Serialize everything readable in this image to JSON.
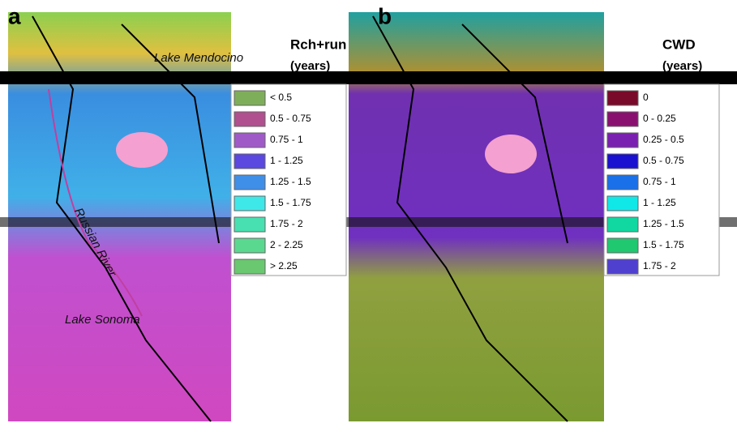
{
  "panels": [
    {
      "letter": "a",
      "legend_title": "Rch+run",
      "legend_unit": "(years)",
      "map_labels": [
        "Lake Mendocino",
        "Russian River",
        "Lake Sonoma"
      ],
      "legend": [
        {
          "label": "< 0.5",
          "color": "#7fae5a"
        },
        {
          "label": "0.5 - 0.75",
          "color": "#b0508f"
        },
        {
          "label": "0.75 - 1",
          "color": "#a05ac8"
        },
        {
          "label": "1 - 1.25",
          "color": "#5a48e0"
        },
        {
          "label": "1.25 - 1.5",
          "color": "#3f8fe8"
        },
        {
          "label": "1.5 - 1.75",
          "color": "#3fe8e8"
        },
        {
          "label": "1.75 - 2",
          "color": "#48e0b0"
        },
        {
          "label": "2 - 2.25",
          "color": "#5ad890"
        },
        {
          "label": "> 2.25",
          "color": "#6ac870"
        }
      ]
    },
    {
      "letter": "b",
      "legend_title": "CWD",
      "legend_unit": "(years)",
      "map_labels": [],
      "legend": [
        {
          "label": "0",
          "color": "#7a0a2a"
        },
        {
          "label": "0 - 0.25",
          "color": "#8a1070"
        },
        {
          "label": "0.25 - 0.5",
          "color": "#7a20b0"
        },
        {
          "label": "0.5 - 0.75",
          "color": "#1a10d0"
        },
        {
          "label": "0.75 - 1",
          "color": "#1a70e8"
        },
        {
          "label": "1 - 1.25",
          "color": "#10e8e8"
        },
        {
          "label": "1.25 - 1.5",
          "color": "#10d8a0"
        },
        {
          "label": "1.5 - 1.75",
          "color": "#20c870"
        },
        {
          "label": "1.75 - 2",
          "color": "#5040d0"
        }
      ]
    }
  ]
}
